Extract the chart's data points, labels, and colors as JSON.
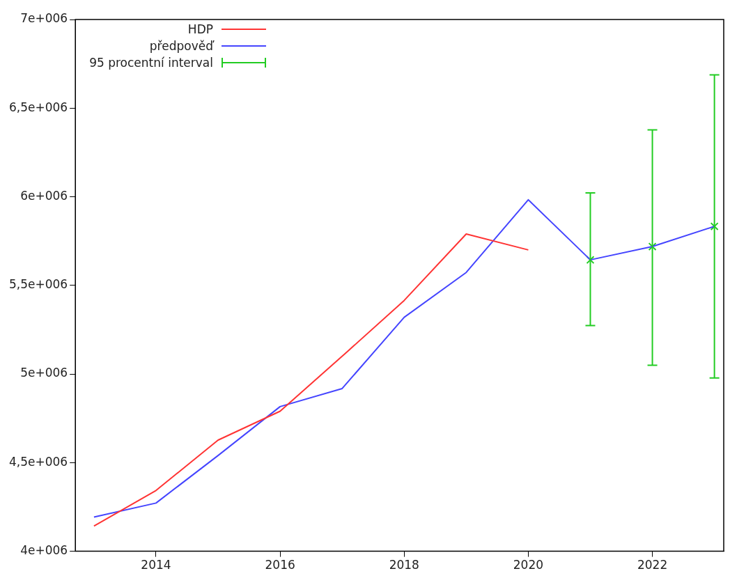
{
  "chart_data": {
    "type": "line",
    "legend": "top left",
    "grid": false,
    "marker": "none",
    "xlim": [
      2012.7,
      2023.15
    ],
    "xticks": [
      2014,
      2016,
      2018,
      2020,
      2022
    ],
    "ylim": [
      4000000,
      7000000
    ],
    "yticks": [
      {
        "value": 4000000,
        "label": "4e+006"
      },
      {
        "value": 4500000,
        "label": "4,5e+006"
      },
      {
        "value": 5000000,
        "label": "5e+006"
      },
      {
        "value": 5500000,
        "label": "5,5e+006"
      },
      {
        "value": 6000000,
        "label": "6e+006"
      },
      {
        "value": 6500000,
        "label": "6,5e+006"
      },
      {
        "value": 7000000,
        "label": "7e+006"
      }
    ],
    "series": [
      {
        "name": "HDP",
        "color": "#ff3333",
        "x": [
          2013,
          2014,
          2015,
          2016,
          2017,
          2018,
          2019,
          2020
        ],
        "values": [
          4142000,
          4343000,
          4627000,
          4790000,
          5100000,
          5415000,
          5790000,
          5700000
        ]
      },
      {
        "name": "předpověď",
        "color": "#4444ff",
        "x": [
          2013,
          2014,
          2015,
          2016,
          2017,
          2018,
          2019,
          2020,
          2021,
          2022,
          2023
        ],
        "values": [
          4193000,
          4272000,
          4540000,
          4816000,
          4918000,
          5320000,
          5573000,
          5983000,
          5644000,
          5719000,
          5833000
        ]
      },
      {
        "name": "95 procentní interval",
        "type": "scatter",
        "marker": "cross",
        "color": "#22cc22",
        "x": [
          2021,
          2022,
          2023
        ],
        "values": [
          5644000,
          5719000,
          5833000
        ],
        "errors": [
          [
            5273000,
            6022000
          ],
          [
            5049000,
            6377000
          ],
          [
            4978000,
            6688000
          ]
        ]
      }
    ]
  }
}
